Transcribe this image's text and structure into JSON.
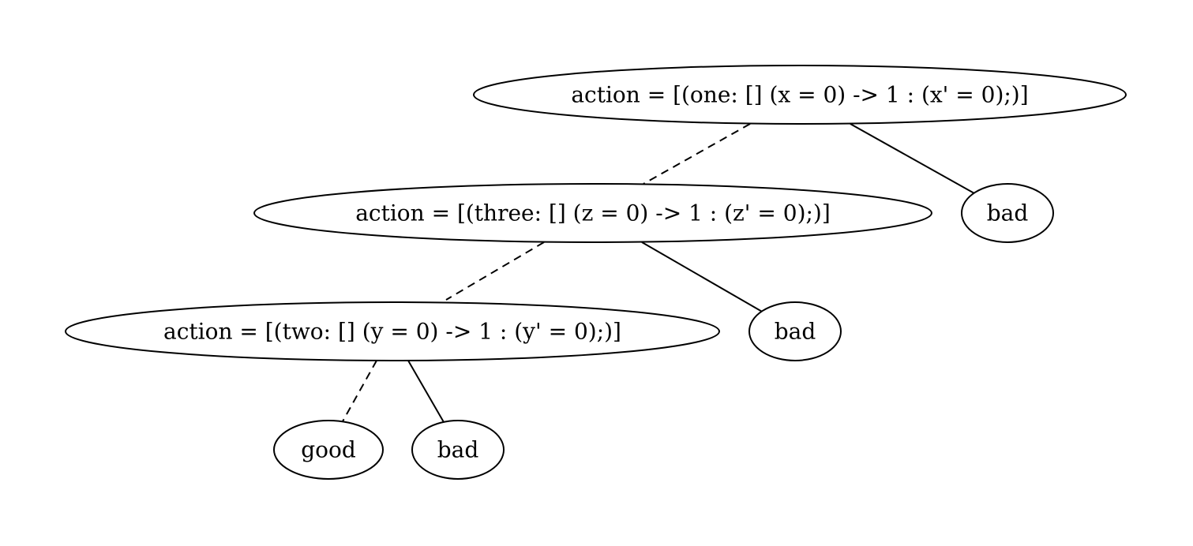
{
  "diagram": {
    "nodes": [
      {
        "id": "n_one",
        "label": "action = [(one: [] (x = 0) -> 1 : (x' = 0);)]"
      },
      {
        "id": "n_bad1",
        "label": "bad"
      },
      {
        "id": "n_three",
        "label": "action = [(three: [] (z = 0) -> 1 : (z' = 0);)]"
      },
      {
        "id": "n_bad2",
        "label": "bad"
      },
      {
        "id": "n_two",
        "label": "action = [(two: [] (y = 0) -> 1 : (y' = 0);)]"
      },
      {
        "id": "n_good",
        "label": "good"
      },
      {
        "id": "n_bad3",
        "label": "bad"
      }
    ],
    "edges": [
      {
        "from": "n_one",
        "to": "n_three",
        "style": "dashed"
      },
      {
        "from": "n_one",
        "to": "n_bad1",
        "style": "solid"
      },
      {
        "from": "n_three",
        "to": "n_two",
        "style": "dashed"
      },
      {
        "from": "n_three",
        "to": "n_bad2",
        "style": "solid"
      },
      {
        "from": "n_two",
        "to": "n_good",
        "style": "dashed"
      },
      {
        "from": "n_two",
        "to": "n_bad3",
        "style": "solid"
      }
    ]
  }
}
